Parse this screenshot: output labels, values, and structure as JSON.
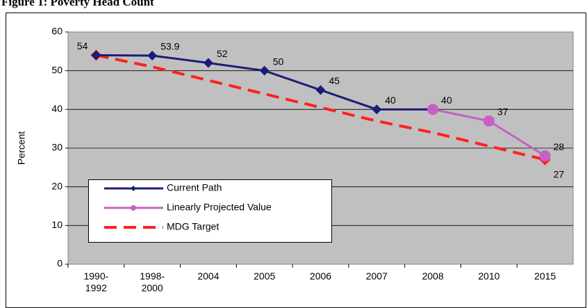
{
  "chart_data": {
    "type": "line",
    "title": "Figure 1: Poverty Head Count",
    "y_label": "Percent",
    "categories": [
      "1990-1992",
      "1998-2000",
      "2004",
      "2005",
      "2006",
      "2007",
      "2008",
      "2010",
      "2015"
    ],
    "series": [
      {
        "name": "Current Path",
        "color": "#1c1c78",
        "marker": "diamond",
        "dash": false,
        "values": [
          54,
          53.9,
          52,
          50,
          45,
          40,
          40,
          null,
          null
        ],
        "value_labels": [
          "54",
          "53.9",
          "52",
          "50",
          "45",
          "40",
          null,
          null,
          null
        ]
      },
      {
        "name": "Linearly Projected Value",
        "color": "#c660c6",
        "marker": "circle",
        "dash": false,
        "values": [
          null,
          null,
          null,
          null,
          null,
          null,
          40,
          37,
          28
        ],
        "value_labels": [
          null,
          null,
          null,
          null,
          null,
          null,
          "40",
          "37",
          "28"
        ]
      },
      {
        "name": "MDG Target",
        "color": "#ff2020",
        "marker": "diamond-ends",
        "dash": true,
        "values": [
          54,
          51,
          47.5,
          44,
          40.5,
          37,
          34,
          30.5,
          27
        ],
        "value_labels": [
          null,
          null,
          null,
          null,
          null,
          null,
          null,
          null,
          "27"
        ]
      }
    ],
    "ylim": [
      0,
      60
    ],
    "yticks": [
      0,
      10,
      20,
      30,
      40,
      50,
      60
    ],
    "grid": true
  }
}
